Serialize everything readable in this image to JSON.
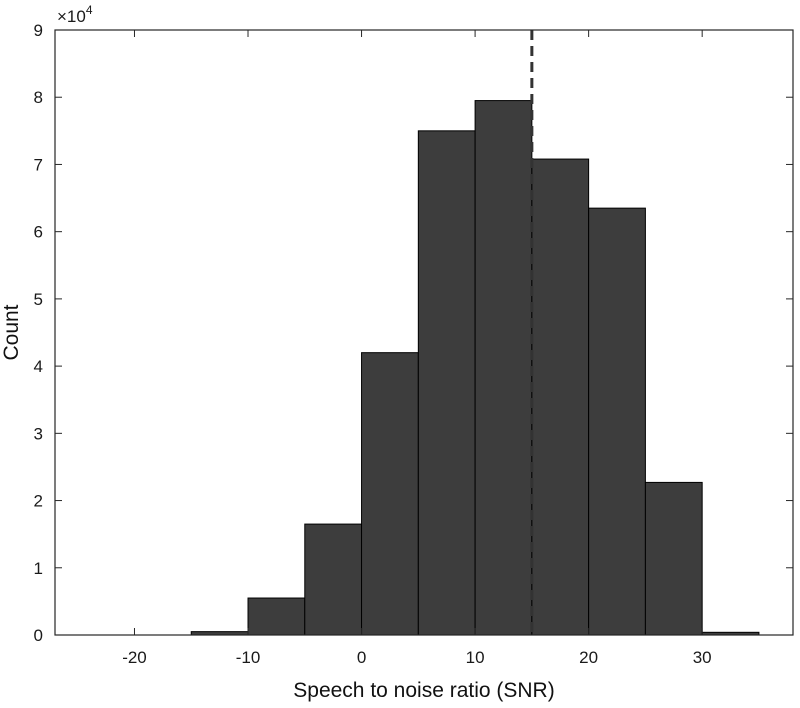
{
  "chart_data": {
    "type": "bar",
    "subtype": "histogram",
    "xlabel": "Speech to noise ratio (SNR)",
    "ylabel": "Count",
    "y_multiplier_label": {
      "base": "×10",
      "exponent": "4"
    },
    "xlim": [
      -27,
      38
    ],
    "ylim": [
      0,
      9
    ],
    "x_ticks": [
      -20,
      -10,
      0,
      10,
      20,
      30
    ],
    "y_ticks": [
      0,
      1,
      2,
      3,
      4,
      5,
      6,
      7,
      8,
      9
    ],
    "bin_edges": [
      -15,
      -10,
      -5,
      0,
      5,
      10,
      15,
      20,
      25,
      30,
      35
    ],
    "values": [
      0.05,
      0.55,
      1.65,
      4.2,
      7.5,
      7.95,
      7.08,
      6.35,
      2.27,
      0.04
    ],
    "values_unit_multiplier": 10000,
    "bar_color": "#3d3d3d",
    "reference_line": {
      "x": 15,
      "style": "dashed",
      "color": "#333333"
    },
    "grid": false,
    "box": true
  }
}
